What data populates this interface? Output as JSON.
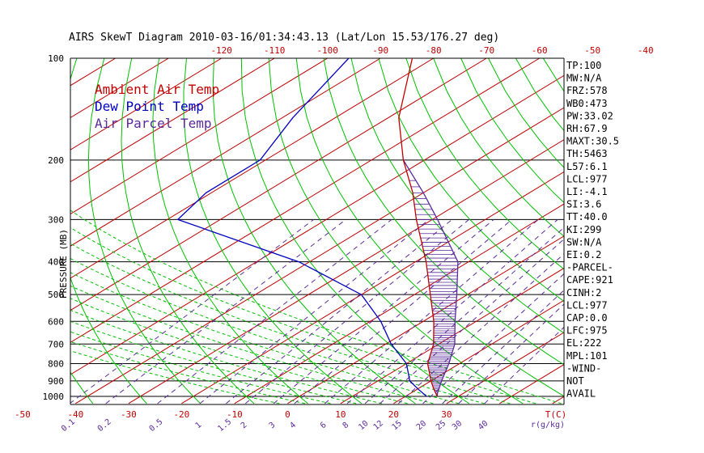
{
  "chart_data": {
    "type": "skewt",
    "title": "AIRS SkewT Diagram 2010-03-16/01:34:43.13 (Lat/Lon 15.53/176.27 deg)",
    "ylabel": "PRESSURE (MB)",
    "xlabel_unit": "T(C)",
    "mixing_unit": "r(g/kg)",
    "pressure_ticks": [
      100,
      200,
      300,
      400,
      500,
      600,
      700,
      800,
      900,
      1000
    ],
    "top_temp_ticks": [
      -120,
      -110,
      -100,
      -90,
      -80,
      -70,
      -60,
      -50,
      -40
    ],
    "bottom_temp_ticks": [
      -50,
      -40,
      -30,
      -20,
      -10,
      0,
      10,
      20,
      30
    ],
    "mixing_ratio_labels": [
      "0.1",
      "0.2",
      "0.5",
      "1",
      "1.5",
      "2",
      "3",
      "4",
      "6",
      "8",
      "10",
      "12",
      "15",
      "20",
      "25",
      "30",
      "40"
    ],
    "legend": [
      {
        "label": "Ambient Air Temp",
        "color": "#c00000"
      },
      {
        "label": "Dew Point Temp",
        "color": "#0000c0"
      },
      {
        "label": "Air Parcel Temp",
        "color": "#5a2a9a"
      }
    ],
    "colors": {
      "isotherm": "#c00000",
      "dry_adiabat": "#00c000",
      "moist_adiabat": "#00c000",
      "mixing_ratio": "#5a2a9a",
      "ambient": "#c00000",
      "dewpoint": "#0000c0",
      "parcel": "#5a2a9a",
      "cape_hatch": "#5a2a9a"
    },
    "ambient_temp_profile": [
      {
        "p": 100,
        "t": -84
      },
      {
        "p": 150,
        "t": -68
      },
      {
        "p": 200,
        "t": -54
      },
      {
        "p": 250,
        "t": -42
      },
      {
        "p": 300,
        "t": -33
      },
      {
        "p": 400,
        "t": -18
      },
      {
        "p": 500,
        "t": -7
      },
      {
        "p": 600,
        "t": 2
      },
      {
        "p": 700,
        "t": 9
      },
      {
        "p": 800,
        "t": 14
      },
      {
        "p": 900,
        "t": 20
      },
      {
        "p": 950,
        "t": 23
      },
      {
        "p": 1000,
        "t": 26
      }
    ],
    "dew_point_profile": [
      {
        "p": 100,
        "t": -96
      },
      {
        "p": 150,
        "t": -88
      },
      {
        "p": 200,
        "t": -81
      },
      {
        "p": 250,
        "t": -81
      },
      {
        "p": 300,
        "t": -78
      },
      {
        "p": 400,
        "t": -42
      },
      {
        "p": 500,
        "t": -20
      },
      {
        "p": 600,
        "t": -8
      },
      {
        "p": 700,
        "t": 1
      },
      {
        "p": 800,
        "t": 10
      },
      {
        "p": 900,
        "t": 16
      },
      {
        "p": 950,
        "t": 20
      },
      {
        "p": 1000,
        "t": 24
      }
    ],
    "parcel_profile": [
      {
        "p": 200,
        "t": -54
      },
      {
        "p": 250,
        "t": -40
      },
      {
        "p": 300,
        "t": -29
      },
      {
        "p": 400,
        "t": -12
      },
      {
        "p": 500,
        "t": -2
      },
      {
        "p": 600,
        "t": 6
      },
      {
        "p": 700,
        "t": 13
      },
      {
        "p": 800,
        "t": 18
      },
      {
        "p": 900,
        "t": 22
      },
      {
        "p": 977,
        "t": 25
      },
      {
        "p": 1000,
        "t": 26
      }
    ],
    "indices": [
      "TP:100",
      "MW:N/A",
      "FRZ:578",
      "WB0:473",
      "PW:33.02",
      "RH:67.9",
      "MAXT:30.5",
      "TH:5463",
      "L57:6.1",
      "LCL:977",
      "LI:-4.1",
      "SI:3.6",
      "TT:40.0",
      "KI:299",
      "SW:N/A",
      "EI:0.2",
      "-PARCEL-",
      "CAPE:921",
      "CINH:2",
      "LCL:977",
      "CAP:0.0",
      "LFC:975",
      "EL:222",
      "MPL:101",
      "-WIND-",
      "NOT",
      "AVAIL"
    ]
  }
}
